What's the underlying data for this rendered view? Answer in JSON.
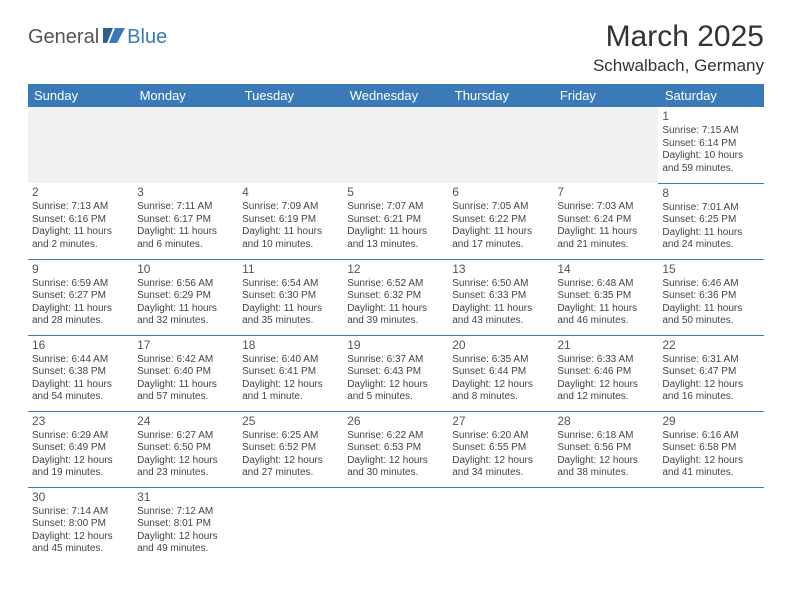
{
  "logo": {
    "text1": "General",
    "text2": "Blue"
  },
  "title": "March 2025",
  "location": "Schwalbach, Germany",
  "colors": {
    "header_bg": "#3a7ab8",
    "header_fg": "#ffffff",
    "empty_bg": "#f1f1f1",
    "border": "#3a7ab8",
    "text": "#444444"
  },
  "typography": {
    "title_fontsize": 30,
    "location_fontsize": 17,
    "weekday_fontsize": 13,
    "cell_fontsize": 10,
    "font_family": "Arial"
  },
  "weekdays": [
    "Sunday",
    "Monday",
    "Tuesday",
    "Wednesday",
    "Thursday",
    "Friday",
    "Saturday"
  ],
  "weeks": [
    [
      null,
      null,
      null,
      null,
      null,
      null,
      {
        "d": "1",
        "sunrise": "Sunrise: 7:15 AM",
        "sunset": "Sunset: 6:14 PM",
        "day1": "Daylight: 10 hours",
        "day2": "and 59 minutes."
      }
    ],
    [
      {
        "d": "2",
        "sunrise": "Sunrise: 7:13 AM",
        "sunset": "Sunset: 6:16 PM",
        "day1": "Daylight: 11 hours",
        "day2": "and 2 minutes."
      },
      {
        "d": "3",
        "sunrise": "Sunrise: 7:11 AM",
        "sunset": "Sunset: 6:17 PM",
        "day1": "Daylight: 11 hours",
        "day2": "and 6 minutes."
      },
      {
        "d": "4",
        "sunrise": "Sunrise: 7:09 AM",
        "sunset": "Sunset: 6:19 PM",
        "day1": "Daylight: 11 hours",
        "day2": "and 10 minutes."
      },
      {
        "d": "5",
        "sunrise": "Sunrise: 7:07 AM",
        "sunset": "Sunset: 6:21 PM",
        "day1": "Daylight: 11 hours",
        "day2": "and 13 minutes."
      },
      {
        "d": "6",
        "sunrise": "Sunrise: 7:05 AM",
        "sunset": "Sunset: 6:22 PM",
        "day1": "Daylight: 11 hours",
        "day2": "and 17 minutes."
      },
      {
        "d": "7",
        "sunrise": "Sunrise: 7:03 AM",
        "sunset": "Sunset: 6:24 PM",
        "day1": "Daylight: 11 hours",
        "day2": "and 21 minutes."
      },
      {
        "d": "8",
        "sunrise": "Sunrise: 7:01 AM",
        "sunset": "Sunset: 6:25 PM",
        "day1": "Daylight: 11 hours",
        "day2": "and 24 minutes."
      }
    ],
    [
      {
        "d": "9",
        "sunrise": "Sunrise: 6:59 AM",
        "sunset": "Sunset: 6:27 PM",
        "day1": "Daylight: 11 hours",
        "day2": "and 28 minutes."
      },
      {
        "d": "10",
        "sunrise": "Sunrise: 6:56 AM",
        "sunset": "Sunset: 6:29 PM",
        "day1": "Daylight: 11 hours",
        "day2": "and 32 minutes."
      },
      {
        "d": "11",
        "sunrise": "Sunrise: 6:54 AM",
        "sunset": "Sunset: 6:30 PM",
        "day1": "Daylight: 11 hours",
        "day2": "and 35 minutes."
      },
      {
        "d": "12",
        "sunrise": "Sunrise: 6:52 AM",
        "sunset": "Sunset: 6:32 PM",
        "day1": "Daylight: 11 hours",
        "day2": "and 39 minutes."
      },
      {
        "d": "13",
        "sunrise": "Sunrise: 6:50 AM",
        "sunset": "Sunset: 6:33 PM",
        "day1": "Daylight: 11 hours",
        "day2": "and 43 minutes."
      },
      {
        "d": "14",
        "sunrise": "Sunrise: 6:48 AM",
        "sunset": "Sunset: 6:35 PM",
        "day1": "Daylight: 11 hours",
        "day2": "and 46 minutes."
      },
      {
        "d": "15",
        "sunrise": "Sunrise: 6:46 AM",
        "sunset": "Sunset: 6:36 PM",
        "day1": "Daylight: 11 hours",
        "day2": "and 50 minutes."
      }
    ],
    [
      {
        "d": "16",
        "sunrise": "Sunrise: 6:44 AM",
        "sunset": "Sunset: 6:38 PM",
        "day1": "Daylight: 11 hours",
        "day2": "and 54 minutes."
      },
      {
        "d": "17",
        "sunrise": "Sunrise: 6:42 AM",
        "sunset": "Sunset: 6:40 PM",
        "day1": "Daylight: 11 hours",
        "day2": "and 57 minutes."
      },
      {
        "d": "18",
        "sunrise": "Sunrise: 6:40 AM",
        "sunset": "Sunset: 6:41 PM",
        "day1": "Daylight: 12 hours",
        "day2": "and 1 minute."
      },
      {
        "d": "19",
        "sunrise": "Sunrise: 6:37 AM",
        "sunset": "Sunset: 6:43 PM",
        "day1": "Daylight: 12 hours",
        "day2": "and 5 minutes."
      },
      {
        "d": "20",
        "sunrise": "Sunrise: 6:35 AM",
        "sunset": "Sunset: 6:44 PM",
        "day1": "Daylight: 12 hours",
        "day2": "and 8 minutes."
      },
      {
        "d": "21",
        "sunrise": "Sunrise: 6:33 AM",
        "sunset": "Sunset: 6:46 PM",
        "day1": "Daylight: 12 hours",
        "day2": "and 12 minutes."
      },
      {
        "d": "22",
        "sunrise": "Sunrise: 6:31 AM",
        "sunset": "Sunset: 6:47 PM",
        "day1": "Daylight: 12 hours",
        "day2": "and 16 minutes."
      }
    ],
    [
      {
        "d": "23",
        "sunrise": "Sunrise: 6:29 AM",
        "sunset": "Sunset: 6:49 PM",
        "day1": "Daylight: 12 hours",
        "day2": "and 19 minutes."
      },
      {
        "d": "24",
        "sunrise": "Sunrise: 6:27 AM",
        "sunset": "Sunset: 6:50 PM",
        "day1": "Daylight: 12 hours",
        "day2": "and 23 minutes."
      },
      {
        "d": "25",
        "sunrise": "Sunrise: 6:25 AM",
        "sunset": "Sunset: 6:52 PM",
        "day1": "Daylight: 12 hours",
        "day2": "and 27 minutes."
      },
      {
        "d": "26",
        "sunrise": "Sunrise: 6:22 AM",
        "sunset": "Sunset: 6:53 PM",
        "day1": "Daylight: 12 hours",
        "day2": "and 30 minutes."
      },
      {
        "d": "27",
        "sunrise": "Sunrise: 6:20 AM",
        "sunset": "Sunset: 6:55 PM",
        "day1": "Daylight: 12 hours",
        "day2": "and 34 minutes."
      },
      {
        "d": "28",
        "sunrise": "Sunrise: 6:18 AM",
        "sunset": "Sunset: 6:56 PM",
        "day1": "Daylight: 12 hours",
        "day2": "and 38 minutes."
      },
      {
        "d": "29",
        "sunrise": "Sunrise: 6:16 AM",
        "sunset": "Sunset: 6:58 PM",
        "day1": "Daylight: 12 hours",
        "day2": "and 41 minutes."
      }
    ],
    [
      {
        "d": "30",
        "sunrise": "Sunrise: 7:14 AM",
        "sunset": "Sunset: 8:00 PM",
        "day1": "Daylight: 12 hours",
        "day2": "and 45 minutes."
      },
      {
        "d": "31",
        "sunrise": "Sunrise: 7:12 AM",
        "sunset": "Sunset: 8:01 PM",
        "day1": "Daylight: 12 hours",
        "day2": "and 49 minutes."
      },
      null,
      null,
      null,
      null,
      null
    ]
  ]
}
